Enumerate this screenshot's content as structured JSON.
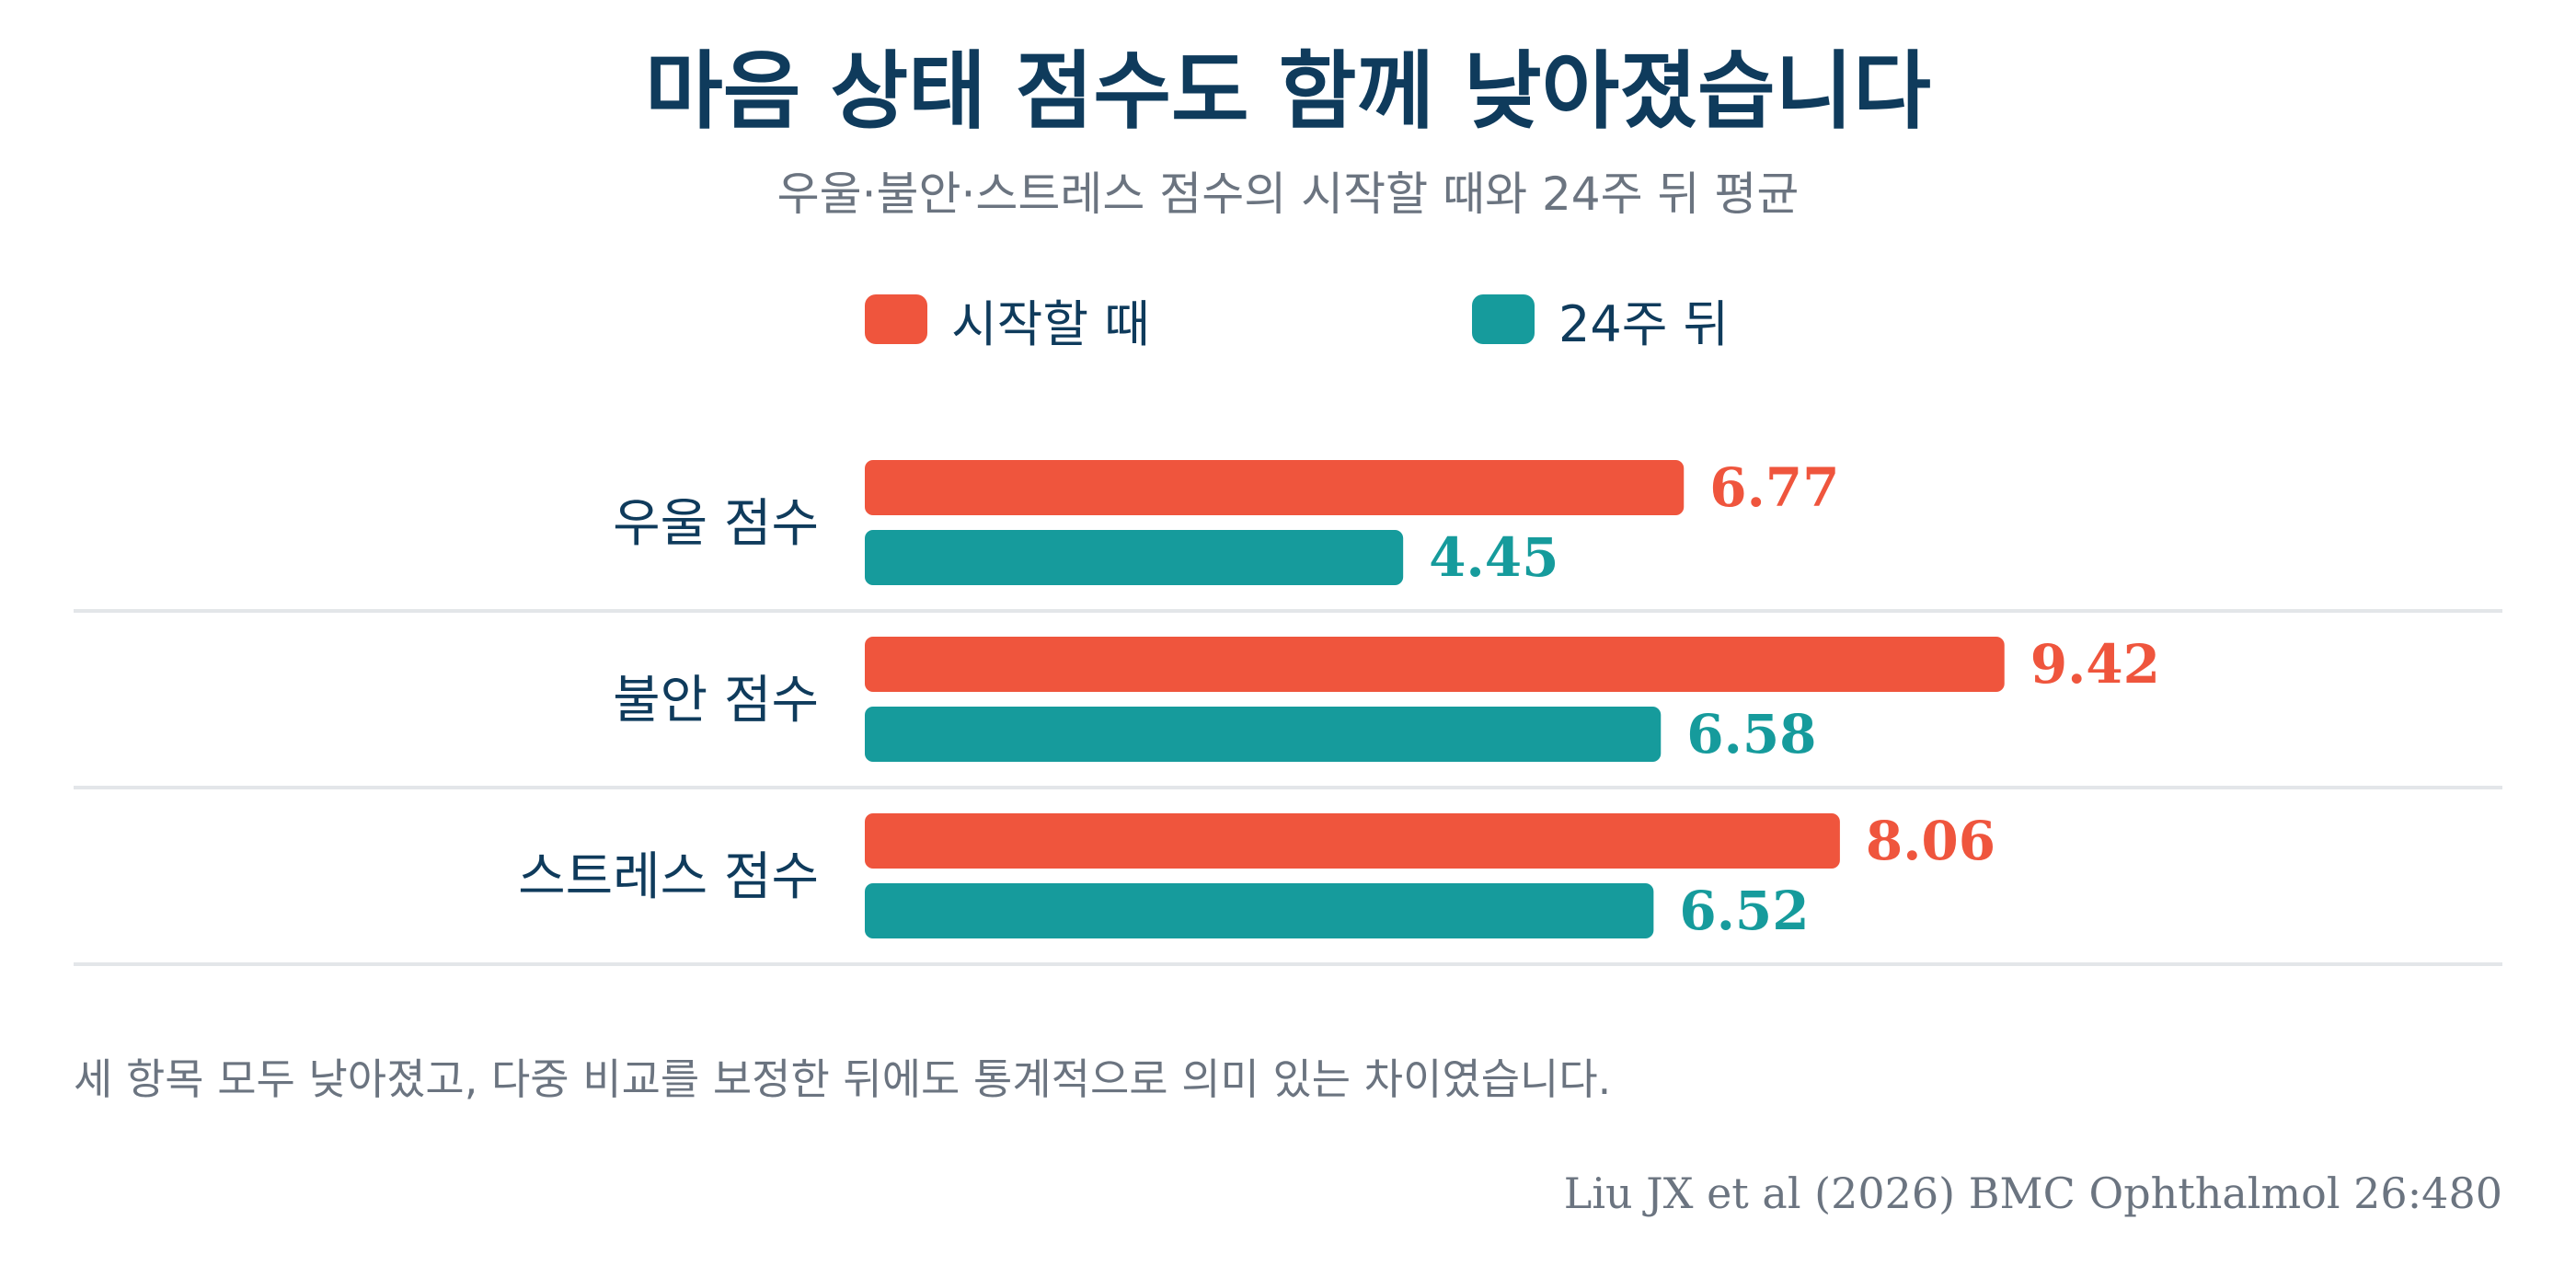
{
  "title": "마음 상태 점수도 함께 낮아졌습니다",
  "subtitle": "우울·불안·스트레스 점수의 시작할 때와 24주 뒤 평균",
  "note": "세 항목 모두 낮아졌고, 다중 비교를 보정한 뒤에도 통계적으로 의미 있는 차이였습니다.",
  "source": "Liu JX et al (2026) BMC Ophthalmol 26:480",
  "colors": {
    "baseline": "#ef553d",
    "week24": "#169b9c",
    "text_dark": "#0f3b5c",
    "text_muted": "#6b7480",
    "divider": "#e3e6e9"
  },
  "chart_data": {
    "type": "bar",
    "orientation": "horizontal",
    "categories": [
      "우울 점수",
      "불안 점수",
      "스트레스 점수"
    ],
    "series": [
      {
        "name": "시작할 때",
        "values": [
          6.77,
          9.42,
          8.06
        ],
        "color": "#ef553d"
      },
      {
        "name": "24주 뒤",
        "values": [
          4.45,
          6.58,
          6.52
        ],
        "color": "#169b9c"
      }
    ],
    "value_labels": [
      [
        "6.77",
        "9.42",
        "8.06"
      ],
      [
        "4.45",
        "6.58",
        "6.52"
      ]
    ],
    "xlim": [
      0,
      10.5
    ],
    "grid": false,
    "legend_position": "top"
  }
}
